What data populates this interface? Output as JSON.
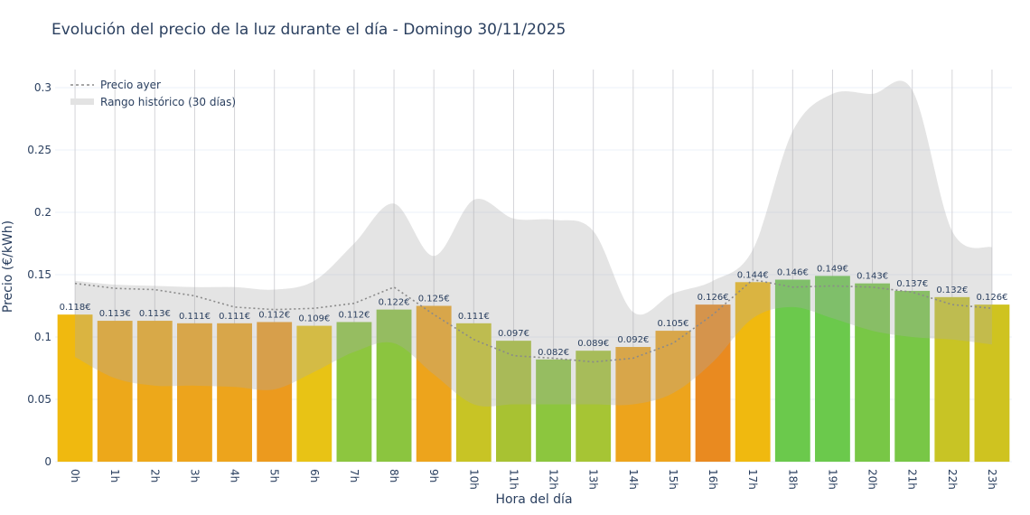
{
  "chart_data": {
    "type": "bar",
    "title": "Evolución del precio de la luz durante el día - Domingo 30/11/2025",
    "xlabel": "Hora del día",
    "ylabel": "Precio (€/kWh)",
    "ylim": [
      0,
      0.315
    ],
    "yticks": [
      0,
      0.05,
      0.1,
      0.15,
      0.2,
      0.25,
      0.3
    ],
    "ytick_labels": [
      "0",
      "0.05",
      "0.1",
      "0.15",
      "0.2",
      "0.25",
      "0.3"
    ],
    "grid": true,
    "legend_position": "top-left",
    "categories": [
      "0h",
      "1h",
      "2h",
      "3h",
      "4h",
      "5h",
      "6h",
      "7h",
      "8h",
      "9h",
      "10h",
      "11h",
      "12h",
      "13h",
      "14h",
      "15h",
      "16h",
      "17h",
      "18h",
      "19h",
      "20h",
      "21h",
      "22h",
      "23h"
    ],
    "values": [
      0.118,
      0.113,
      0.113,
      0.111,
      0.111,
      0.112,
      0.109,
      0.112,
      0.122,
      0.125,
      0.111,
      0.097,
      0.082,
      0.089,
      0.092,
      0.105,
      0.126,
      0.144,
      0.146,
      0.149,
      0.143,
      0.137,
      0.132,
      0.126
    ],
    "data_labels": [
      "0.118€",
      "0.113€",
      "0.113€",
      "0.111€",
      "0.111€",
      "0.112€",
      "0.109€",
      "0.112€",
      "0.122€",
      "0.125€",
      "0.111€",
      "0.097€",
      "0.082€",
      "0.089€",
      "0.092€",
      "0.105€",
      "0.126€",
      "0.144€",
      "0.146€",
      "0.149€",
      "0.143€",
      "0.137€",
      "0.132€",
      "0.126€"
    ],
    "bar_colors": [
      "#f0b90f",
      "#eda81a",
      "#eda81a",
      "#eda41c",
      "#eda41c",
      "#ec9a1e",
      "#e8c315",
      "#8dc63f",
      "#8bc53f",
      "#eda41c",
      "#c8c425",
      "#a8c232",
      "#8cc63e",
      "#a6c534",
      "#eda41c",
      "#eda41c",
      "#e98a20",
      "#f0b90f",
      "#6bc94c",
      "#6bc94c",
      "#78c746",
      "#78c746",
      "#c8c425",
      "#cfc320"
    ],
    "series": [
      {
        "name": "Precio ayer",
        "style": "dotted",
        "color": "#8a8a8a",
        "values": [
          0.143,
          0.139,
          0.138,
          0.133,
          0.124,
          0.122,
          0.123,
          0.127,
          0.14,
          0.118,
          0.098,
          0.085,
          0.083,
          0.08,
          0.083,
          0.095,
          0.118,
          0.146,
          0.14,
          0.141,
          0.14,
          0.136,
          0.126,
          0.123
        ]
      },
      {
        "name": "Rango histórico (30 días)",
        "style": "band",
        "color": "#b4b4b4",
        "upper": [
          0.145,
          0.142,
          0.141,
          0.14,
          0.14,
          0.138,
          0.145,
          0.175,
          0.207,
          0.165,
          0.21,
          0.195,
          0.194,
          0.185,
          0.12,
          0.135,
          0.145,
          0.17,
          0.265,
          0.295,
          0.295,
          0.298,
          0.185,
          0.172
        ],
        "lower": [
          0.084,
          0.067,
          0.061,
          0.061,
          0.06,
          0.058,
          0.072,
          0.088,
          0.095,
          0.07,
          0.046,
          0.046,
          0.046,
          0.046,
          0.046,
          0.055,
          0.08,
          0.115,
          0.124,
          0.115,
          0.105,
          0.1,
          0.098,
          0.094
        ]
      }
    ]
  }
}
